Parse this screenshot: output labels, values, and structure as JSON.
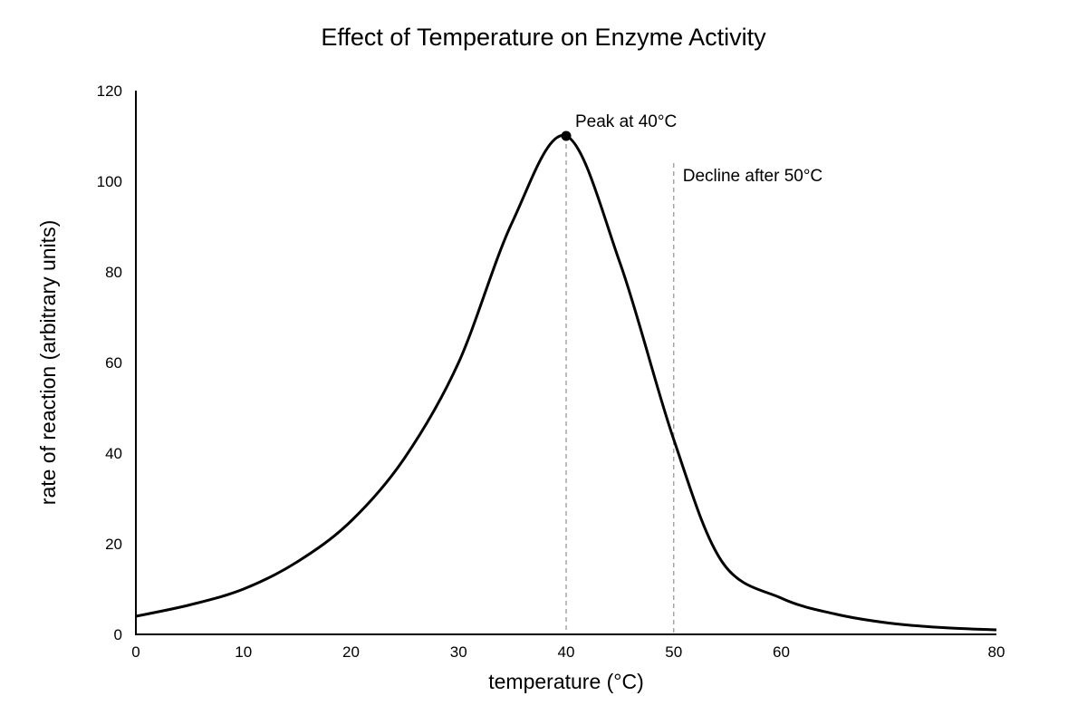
{
  "chart_data": {
    "type": "line",
    "title": "Effect of Temperature on Enzyme Activity",
    "xlabel": "temperature (°C)",
    "ylabel": "rate of reaction (arbitrary units)",
    "xlim": [
      0,
      80
    ],
    "ylim": [
      0,
      120
    ],
    "xticks": [
      0,
      10,
      20,
      30,
      40,
      50,
      60,
      70,
      80
    ],
    "yticks": [
      0,
      20,
      40,
      60,
      80,
      100,
      120
    ],
    "xtick_labels": [
      "0",
      "10",
      "20",
      "30",
      "40",
      "50",
      "60",
      "",
      "80"
    ],
    "ytick_labels": [
      "0",
      "20",
      "40",
      "60",
      "80",
      "100",
      "120"
    ],
    "grid": false,
    "line_color": "#000000",
    "reference_line_color": "#999999",
    "series": [
      {
        "x": [
          0,
          5,
          10,
          15,
          20,
          25,
          30,
          35,
          40,
          45,
          50,
          54.5,
          60,
          65,
          70,
          75,
          80
        ],
        "y": [
          4,
          6.5,
          10,
          16,
          25,
          39,
          60,
          91,
          110,
          82,
          43,
          16,
          8,
          4.5,
          2.5,
          1.5,
          1
        ]
      }
    ],
    "peak_point": {
      "x": 40,
      "y": 110
    },
    "annotations": [
      {
        "text": "Peak at 40°C",
        "x": 40,
        "y": 110
      },
      {
        "text": "Decline after 50°C",
        "x": 50,
        "y": 104
      }
    ],
    "reference_lines": [
      {
        "x": 40,
        "y_top": 110
      },
      {
        "x": 50,
        "y_top": 104
      }
    ]
  }
}
